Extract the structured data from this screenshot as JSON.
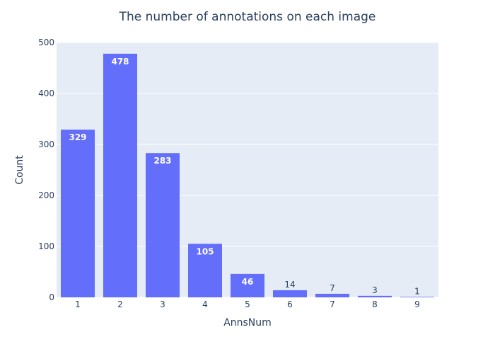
{
  "chart_data": {
    "type": "bar",
    "title": "The number of annotations on each image",
    "xlabel": "AnnsNum",
    "ylabel": "Count",
    "categories": [
      "1",
      "2",
      "3",
      "4",
      "5",
      "6",
      "7",
      "8",
      "9"
    ],
    "values": [
      329,
      478,
      283,
      105,
      46,
      14,
      7,
      3,
      1
    ],
    "ylim": [
      0,
      500
    ],
    "yticks": [
      0,
      100,
      200,
      300,
      400,
      500
    ],
    "grid": true,
    "legend": "none",
    "colors": {
      "bar": "#636efa",
      "plot_bg": "#e5ecf6",
      "grid": "#ffffff",
      "text": "#2a3f5f"
    }
  }
}
